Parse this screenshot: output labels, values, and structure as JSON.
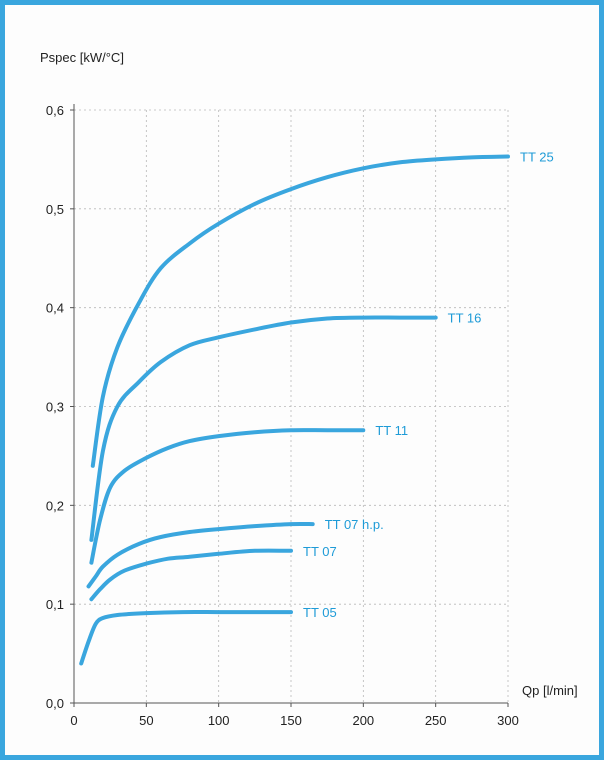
{
  "chart_data": {
    "type": "line",
    "ylabel": "Pspec [kW/°C]",
    "xlabel": "Qp [l/min]",
    "xlim": [
      0,
      300
    ],
    "ylim": [
      0.0,
      0.6
    ],
    "x_ticks": [
      "0",
      "50",
      "100",
      "150",
      "200",
      "250",
      "300"
    ],
    "y_ticks": [
      "0,0",
      "0,1",
      "0,2",
      "0,3",
      "0,4",
      "0,5",
      "0,6"
    ],
    "grid": true,
    "series": [
      {
        "name": "TT 25",
        "x": [
          13,
          20,
          30,
          45,
          60,
          80,
          100,
          125,
          150,
          175,
          200,
          225,
          250,
          275,
          300
        ],
        "y": [
          0.24,
          0.31,
          0.36,
          0.405,
          0.44,
          0.465,
          0.485,
          0.505,
          0.52,
          0.532,
          0.541,
          0.547,
          0.55,
          0.552,
          0.553
        ]
      },
      {
        "name": "TT 16",
        "x": [
          12,
          20,
          30,
          45,
          60,
          80,
          100,
          125,
          150,
          175,
          200,
          225,
          250
        ],
        "y": [
          0.165,
          0.255,
          0.3,
          0.325,
          0.345,
          0.362,
          0.37,
          0.378,
          0.385,
          0.389,
          0.39,
          0.39,
          0.39
        ]
      },
      {
        "name": "TT 11",
        "x": [
          12,
          18,
          25,
          35,
          50,
          65,
          80,
          100,
          125,
          150,
          175,
          200
        ],
        "y": [
          0.142,
          0.185,
          0.218,
          0.235,
          0.248,
          0.258,
          0.265,
          0.27,
          0.274,
          0.276,
          0.276,
          0.276
        ]
      },
      {
        "name": "TT 07 h.p.",
        "x": [
          10,
          15,
          20,
          30,
          45,
          60,
          80,
          100,
          125,
          150,
          165
        ],
        "y": [
          0.118,
          0.128,
          0.138,
          0.15,
          0.161,
          0.168,
          0.173,
          0.176,
          0.179,
          0.181,
          0.181
        ]
      },
      {
        "name": "TT 07",
        "x": [
          12,
          18,
          25,
          35,
          50,
          65,
          80,
          100,
          125,
          150
        ],
        "y": [
          0.105,
          0.115,
          0.125,
          0.134,
          0.141,
          0.146,
          0.148,
          0.151,
          0.154,
          0.154
        ]
      },
      {
        "name": "TT 05",
        "x": [
          5,
          10,
          15,
          20,
          30,
          50,
          75,
          100,
          125,
          150
        ],
        "y": [
          0.04,
          0.062,
          0.08,
          0.086,
          0.089,
          0.091,
          0.092,
          0.092,
          0.092,
          0.092
        ]
      }
    ]
  },
  "colors": {
    "frame": "#3aa6de",
    "curve": "#3aa6de",
    "label": "#1e9bd7"
  }
}
